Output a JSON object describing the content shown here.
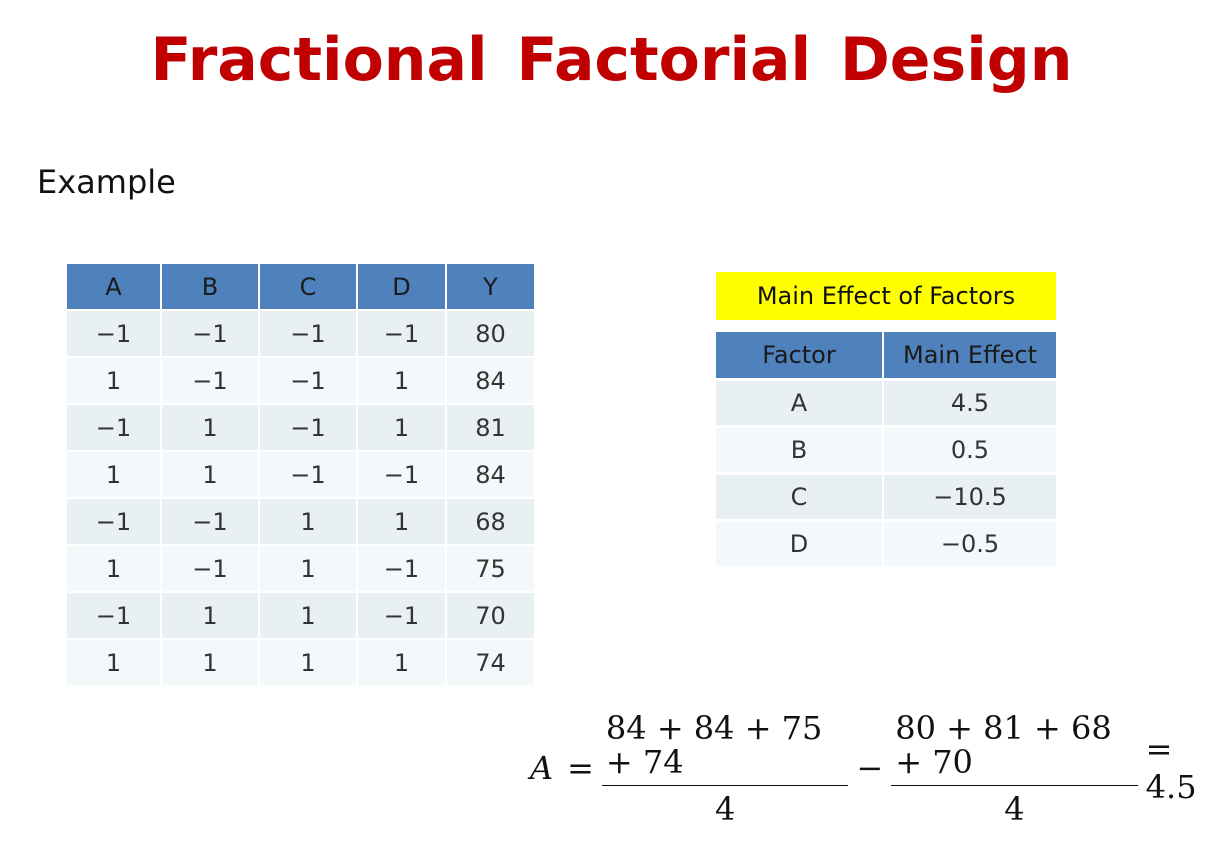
{
  "title": "Fractional Factorial Design",
  "subtitle": "Example",
  "design_table": {
    "headers": [
      "A",
      "B",
      "C",
      "D",
      "Y"
    ],
    "rows": [
      [
        "−1",
        "−1",
        "−1",
        "−1",
        "80"
      ],
      [
        "1",
        "−1",
        "−1",
        "1",
        "84"
      ],
      [
        "−1",
        "1",
        "−1",
        "1",
        "81"
      ],
      [
        "1",
        "1",
        "−1",
        "−1",
        "84"
      ],
      [
        "−1",
        "−1",
        "1",
        "1",
        "68"
      ],
      [
        "1",
        "−1",
        "1",
        "−1",
        "75"
      ],
      [
        "−1",
        "1",
        "1",
        "−1",
        "70"
      ],
      [
        "1",
        "1",
        "1",
        "1",
        "74"
      ]
    ]
  },
  "effects_table": {
    "caption": "Main Effect of Factors",
    "headers": [
      "Factor",
      "Main Effect"
    ],
    "rows": [
      [
        "A",
        "4.5"
      ],
      [
        "B",
        "0.5"
      ],
      [
        "C",
        "−10.5"
      ],
      [
        "D",
        "−0.5"
      ]
    ]
  },
  "formula": {
    "lhs": "A",
    "equals": "=",
    "frac1_num": "84 + 84 + 75 + 74",
    "frac1_den": "4",
    "minus": "−",
    "frac2_num": "80 + 81 + 68 + 70",
    "frac2_den": "4",
    "result": "= 4.5"
  },
  "colors": {
    "title": "#c00000",
    "header_bg": "#4f81bd",
    "caption_bg": "#ffff00",
    "row_odd": "#e8f0f3",
    "row_even": "#f3f8fa"
  }
}
